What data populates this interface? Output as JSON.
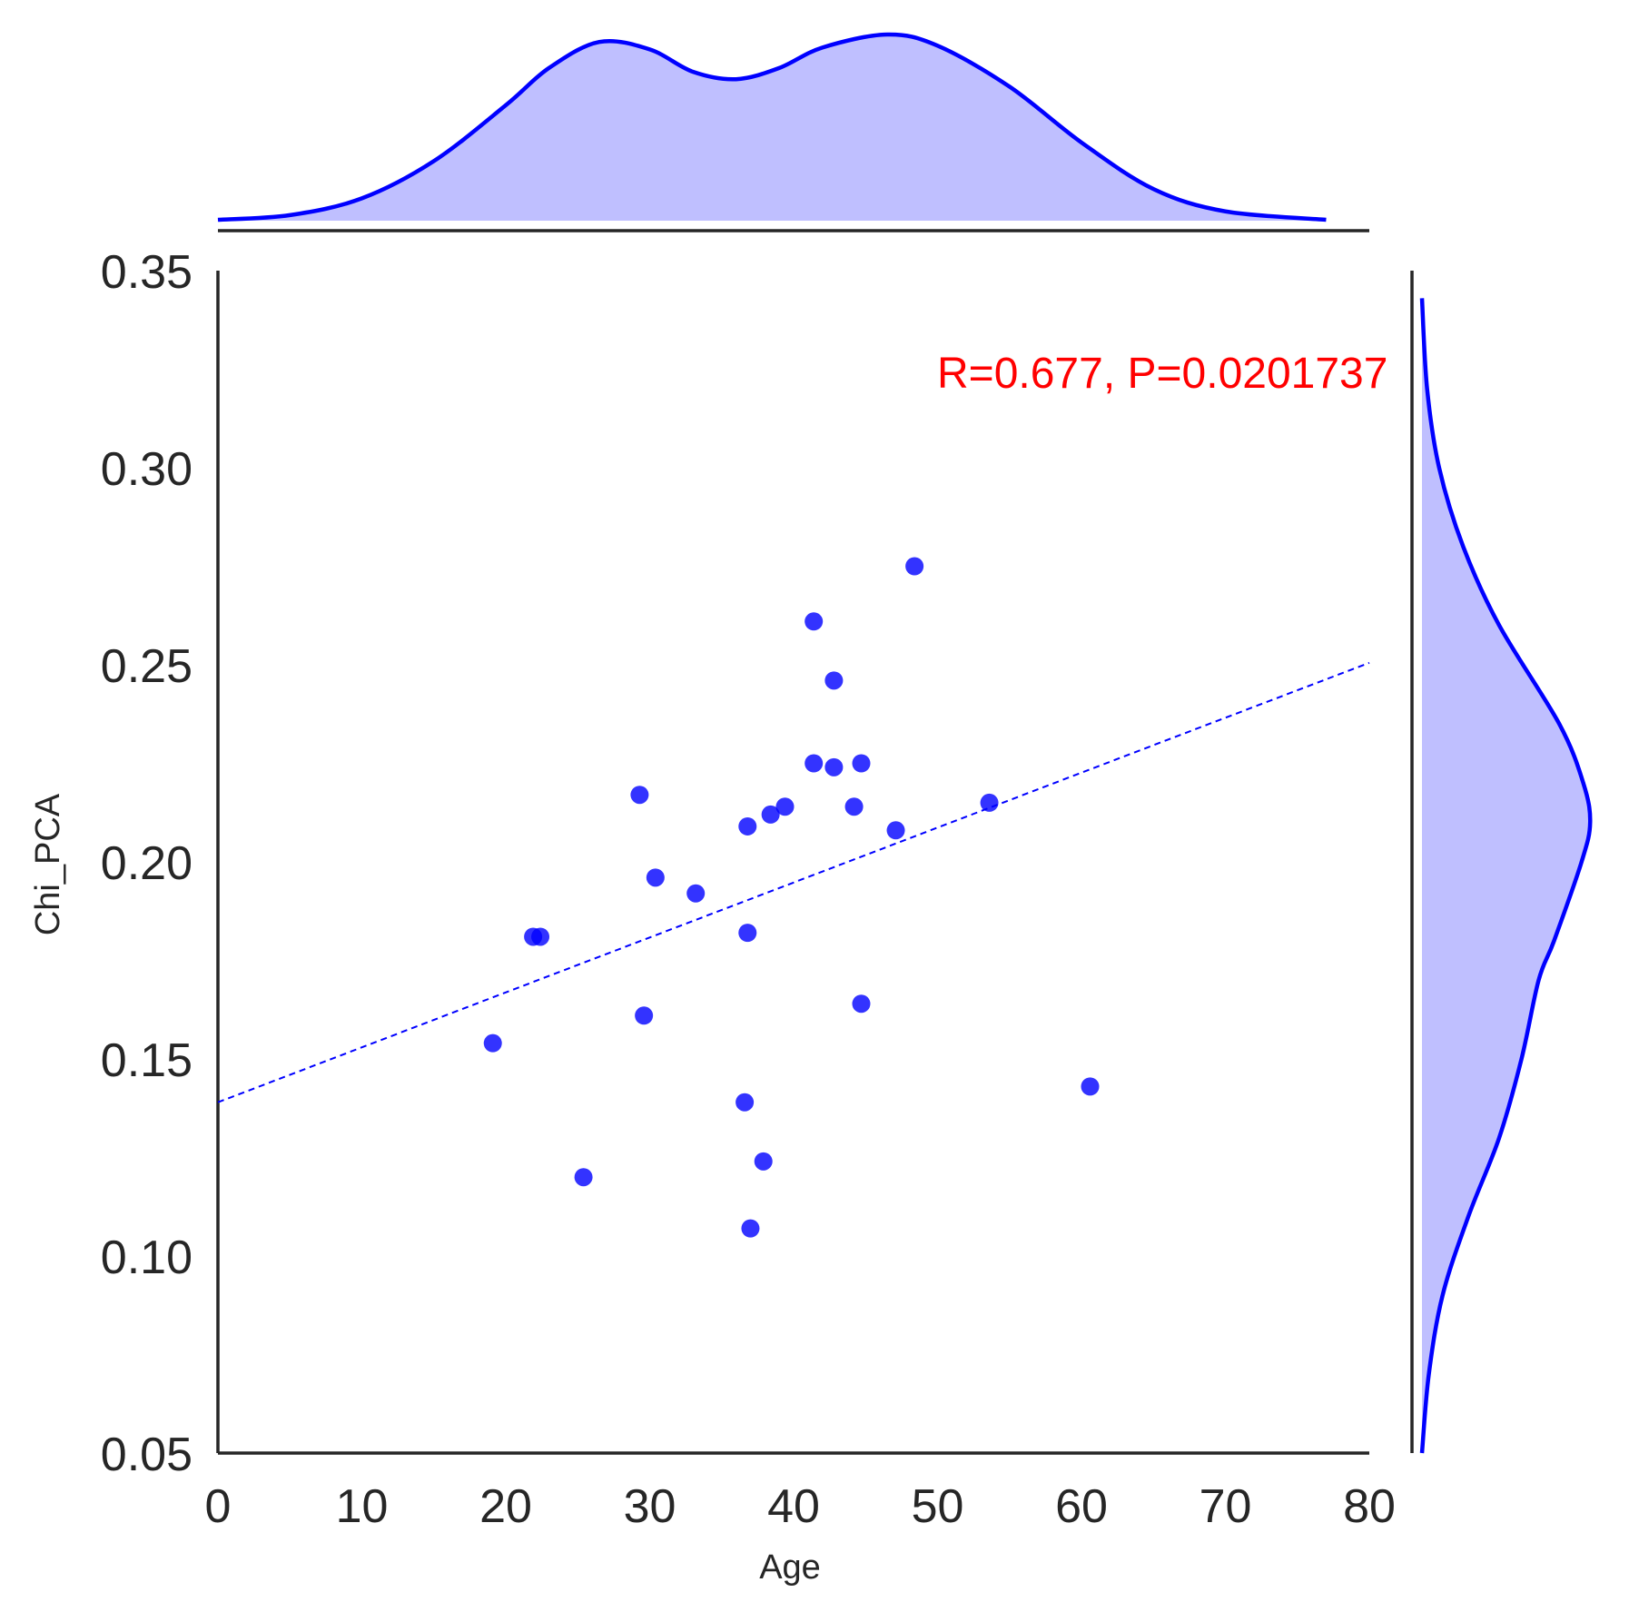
{
  "chart_data": {
    "type": "scatter",
    "xlabel": "Age",
    "ylabel": "Chi_PCA",
    "xlim": [
      0,
      80
    ],
    "ylim": [
      0.05,
      0.35
    ],
    "xticks": [
      "0",
      "10",
      "20",
      "30",
      "40",
      "50",
      "60",
      "70",
      "80"
    ],
    "yticks": [
      "0.05",
      "0.10",
      "0.15",
      "0.20",
      "0.25",
      "0.30",
      "0.35"
    ],
    "annotation": "R=0.677, P=0.0201737",
    "grid": false,
    "colors": {
      "points": "#0000ff",
      "regression": "#0000ff",
      "kde_fill": "#bfbfff",
      "annotation": "#ff0000",
      "axes": "#262626"
    },
    "regression": {
      "x": [
        0,
        80
      ],
      "y": [
        0.139,
        0.2505
      ]
    },
    "points": [
      {
        "x": 19.1,
        "y": 0.154
      },
      {
        "x": 21.9,
        "y": 0.181
      },
      {
        "x": 22.4,
        "y": 0.181
      },
      {
        "x": 25.4,
        "y": 0.12
      },
      {
        "x": 29.3,
        "y": 0.217
      },
      {
        "x": 29.6,
        "y": 0.161
      },
      {
        "x": 30.4,
        "y": 0.196
      },
      {
        "x": 33.2,
        "y": 0.192
      },
      {
        "x": 36.6,
        "y": 0.139
      },
      {
        "x": 36.8,
        "y": 0.209
      },
      {
        "x": 36.8,
        "y": 0.182
      },
      {
        "x": 37.0,
        "y": 0.107
      },
      {
        "x": 37.9,
        "y": 0.124
      },
      {
        "x": 38.4,
        "y": 0.212
      },
      {
        "x": 39.4,
        "y": 0.214
      },
      {
        "x": 41.4,
        "y": 0.261
      },
      {
        "x": 41.4,
        "y": 0.225
      },
      {
        "x": 42.8,
        "y": 0.246
      },
      {
        "x": 42.8,
        "y": 0.224
      },
      {
        "x": 44.2,
        "y": 0.214
      },
      {
        "x": 44.7,
        "y": 0.225
      },
      {
        "x": 44.7,
        "y": 0.164
      },
      {
        "x": 47.1,
        "y": 0.208
      },
      {
        "x": 48.4,
        "y": 0.275
      },
      {
        "x": 53.6,
        "y": 0.215
      },
      {
        "x": 60.6,
        "y": 0.143
      }
    ],
    "marginal_x_kde": {
      "x": [
        0,
        5,
        10,
        15,
        20,
        23,
        26.5,
        30,
        33,
        36,
        39,
        42,
        46.5,
        50,
        55,
        60,
        65,
        70,
        77
      ],
      "density": [
        0.005,
        0.03,
        0.12,
        0.32,
        0.62,
        0.82,
        0.96,
        0.92,
        0.8,
        0.76,
        0.82,
        0.93,
        1.0,
        0.94,
        0.72,
        0.42,
        0.17,
        0.05,
        0.005
      ]
    },
    "marginal_y_kde": {
      "y": [
        0.05,
        0.07,
        0.09,
        0.11,
        0.13,
        0.15,
        0.17,
        0.18,
        0.2,
        0.21,
        0.22,
        0.235,
        0.26,
        0.28,
        0.3,
        0.32,
        0.343
      ],
      "density": [
        0.0,
        0.04,
        0.12,
        0.27,
        0.45,
        0.58,
        0.68,
        0.77,
        0.93,
        0.98,
        0.94,
        0.8,
        0.45,
        0.24,
        0.1,
        0.03,
        0.0
      ]
    }
  }
}
